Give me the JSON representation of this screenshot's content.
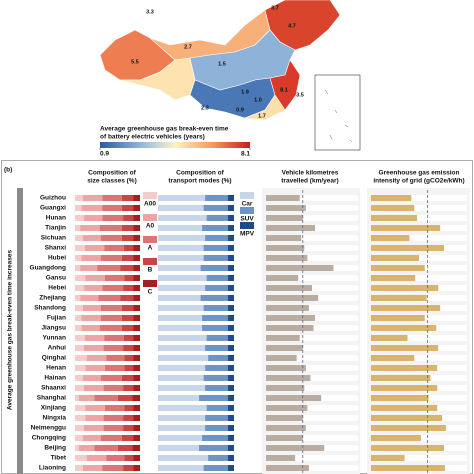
{
  "map": {
    "region_labels": [
      "3.3",
      "3.7",
      "4.7",
      "2.7",
      "5.5",
      "1.5",
      "1.9",
      "1.0",
      "0.9",
      "8.1",
      "2.3",
      "1.7",
      "3.5"
    ],
    "colorbar_title": [
      "Average greenhouse gas break-even time",
      "of battery electric vehicles (years)"
    ],
    "colorbar_ticks": [
      0.9,
      8.1
    ]
  },
  "panel_b": {
    "label": "(b)",
    "y_label": "Average greenhouse gas break-even time increases",
    "categories": [
      "Guizhou",
      "Guangxi",
      "Hunan",
      "Tianjin",
      "Sichuan",
      "Shanxi",
      "Hubei",
      "Guangdong",
      "Gansu",
      "Hebei",
      "Zhejiang",
      "Shandong",
      "Fujian",
      "Jiangsu",
      "Yunnan",
      "Anhui",
      "Qinghai",
      "Henan",
      "Hainan",
      "Shaanxi",
      "Shanghai",
      "Xinjiang",
      "Ningxia",
      "Neimenggu",
      "Chongqing",
      "Beijing",
      "Tibet",
      "Liaoning"
    ]
  },
  "chart_data": [
    {
      "type": "stacked_barh",
      "title": [
        "Composition of",
        "size classes (%)"
      ],
      "xlim": [
        0,
        100
      ],
      "series": [
        {
          "name": "A00",
          "color": "#f5cccc",
          "values": [
            12,
            10,
            14,
            8,
            12,
            15,
            10,
            8,
            16,
            14,
            8,
            12,
            10,
            10,
            15,
            14,
            18,
            16,
            12,
            14,
            6,
            16,
            16,
            14,
            12,
            6,
            18,
            12
          ]
        },
        {
          "name": "A0",
          "color": "#eba5a5",
          "values": [
            30,
            32,
            28,
            30,
            28,
            30,
            30,
            26,
            30,
            28,
            28,
            28,
            30,
            28,
            30,
            30,
            30,
            30,
            28,
            30,
            24,
            30,
            28,
            30,
            28,
            24,
            30,
            30
          ]
        },
        {
          "name": "A",
          "color": "#db7474",
          "values": [
            30,
            30,
            32,
            34,
            32,
            30,
            32,
            36,
            30,
            32,
            34,
            32,
            32,
            34,
            30,
            30,
            28,
            30,
            32,
            30,
            36,
            30,
            30,
            30,
            32,
            36,
            28,
            32
          ]
        },
        {
          "name": "B",
          "color": "#c94646",
          "values": [
            18,
            18,
            16,
            18,
            18,
            15,
            18,
            20,
            14,
            16,
            20,
            18,
            18,
            18,
            15,
            16,
            14,
            14,
            18,
            16,
            22,
            14,
            16,
            16,
            18,
            22,
            14,
            16
          ]
        },
        {
          "name": "C",
          "color": "#a51e22",
          "values": [
            10,
            10,
            10,
            10,
            10,
            10,
            10,
            10,
            10,
            10,
            10,
            10,
            10,
            10,
            10,
            10,
            10,
            10,
            10,
            10,
            12,
            10,
            10,
            10,
            10,
            12,
            10,
            10
          ]
        }
      ]
    },
    {
      "type": "stacked_barh",
      "title": [
        "Composition of",
        "transport modes (%)"
      ],
      "xlim": [
        0,
        100
      ],
      "series": [
        {
          "name": "Car",
          "color": "#c8d6ea",
          "values": [
            62,
            60,
            64,
            58,
            62,
            60,
            60,
            56,
            64,
            62,
            56,
            60,
            58,
            58,
            64,
            62,
            66,
            62,
            60,
            62,
            54,
            64,
            62,
            62,
            58,
            54,
            66,
            60
          ]
        },
        {
          "name": "SUV",
          "color": "#6e94c6",
          "values": [
            30,
            32,
            28,
            34,
            30,
            32,
            32,
            36,
            28,
            30,
            36,
            32,
            34,
            34,
            28,
            30,
            26,
            30,
            32,
            30,
            38,
            28,
            30,
            30,
            34,
            38,
            26,
            32
          ]
        },
        {
          "name": "MPV",
          "color": "#1f4a87",
          "values": [
            8,
            8,
            8,
            8,
            8,
            8,
            8,
            8,
            8,
            8,
            8,
            8,
            8,
            8,
            8,
            8,
            8,
            8,
            8,
            8,
            8,
            8,
            8,
            8,
            8,
            8,
            8,
            8
          ]
        }
      ]
    },
    {
      "type": "barh",
      "title": [
        "Vehicle kilometres",
        "travelled (km/year)"
      ],
      "xlim": [
        0,
        30000
      ],
      "color": "#b9ada2",
      "reference_line": 12000,
      "values": [
        11000,
        13000,
        12000,
        16000,
        11500,
        12500,
        13500,
        22000,
        10500,
        15000,
        17000,
        14000,
        16000,
        15500,
        11000,
        12000,
        10000,
        13000,
        14500,
        12500,
        18000,
        13500,
        12000,
        13000,
        12000,
        19000,
        9500,
        14000
      ]
    },
    {
      "type": "barh",
      "title": [
        "Greenhouse gas emission",
        "intensity of grid (gCO2e/kWh)"
      ],
      "xlim": [
        0,
        1000
      ],
      "color": "#d9b46c",
      "reference_line": 590,
      "values": [
        420,
        450,
        480,
        720,
        400,
        760,
        500,
        560,
        460,
        700,
        580,
        720,
        560,
        680,
        380,
        700,
        450,
        690,
        620,
        690,
        600,
        690,
        740,
        780,
        520,
        760,
        350,
        770
      ]
    }
  ]
}
